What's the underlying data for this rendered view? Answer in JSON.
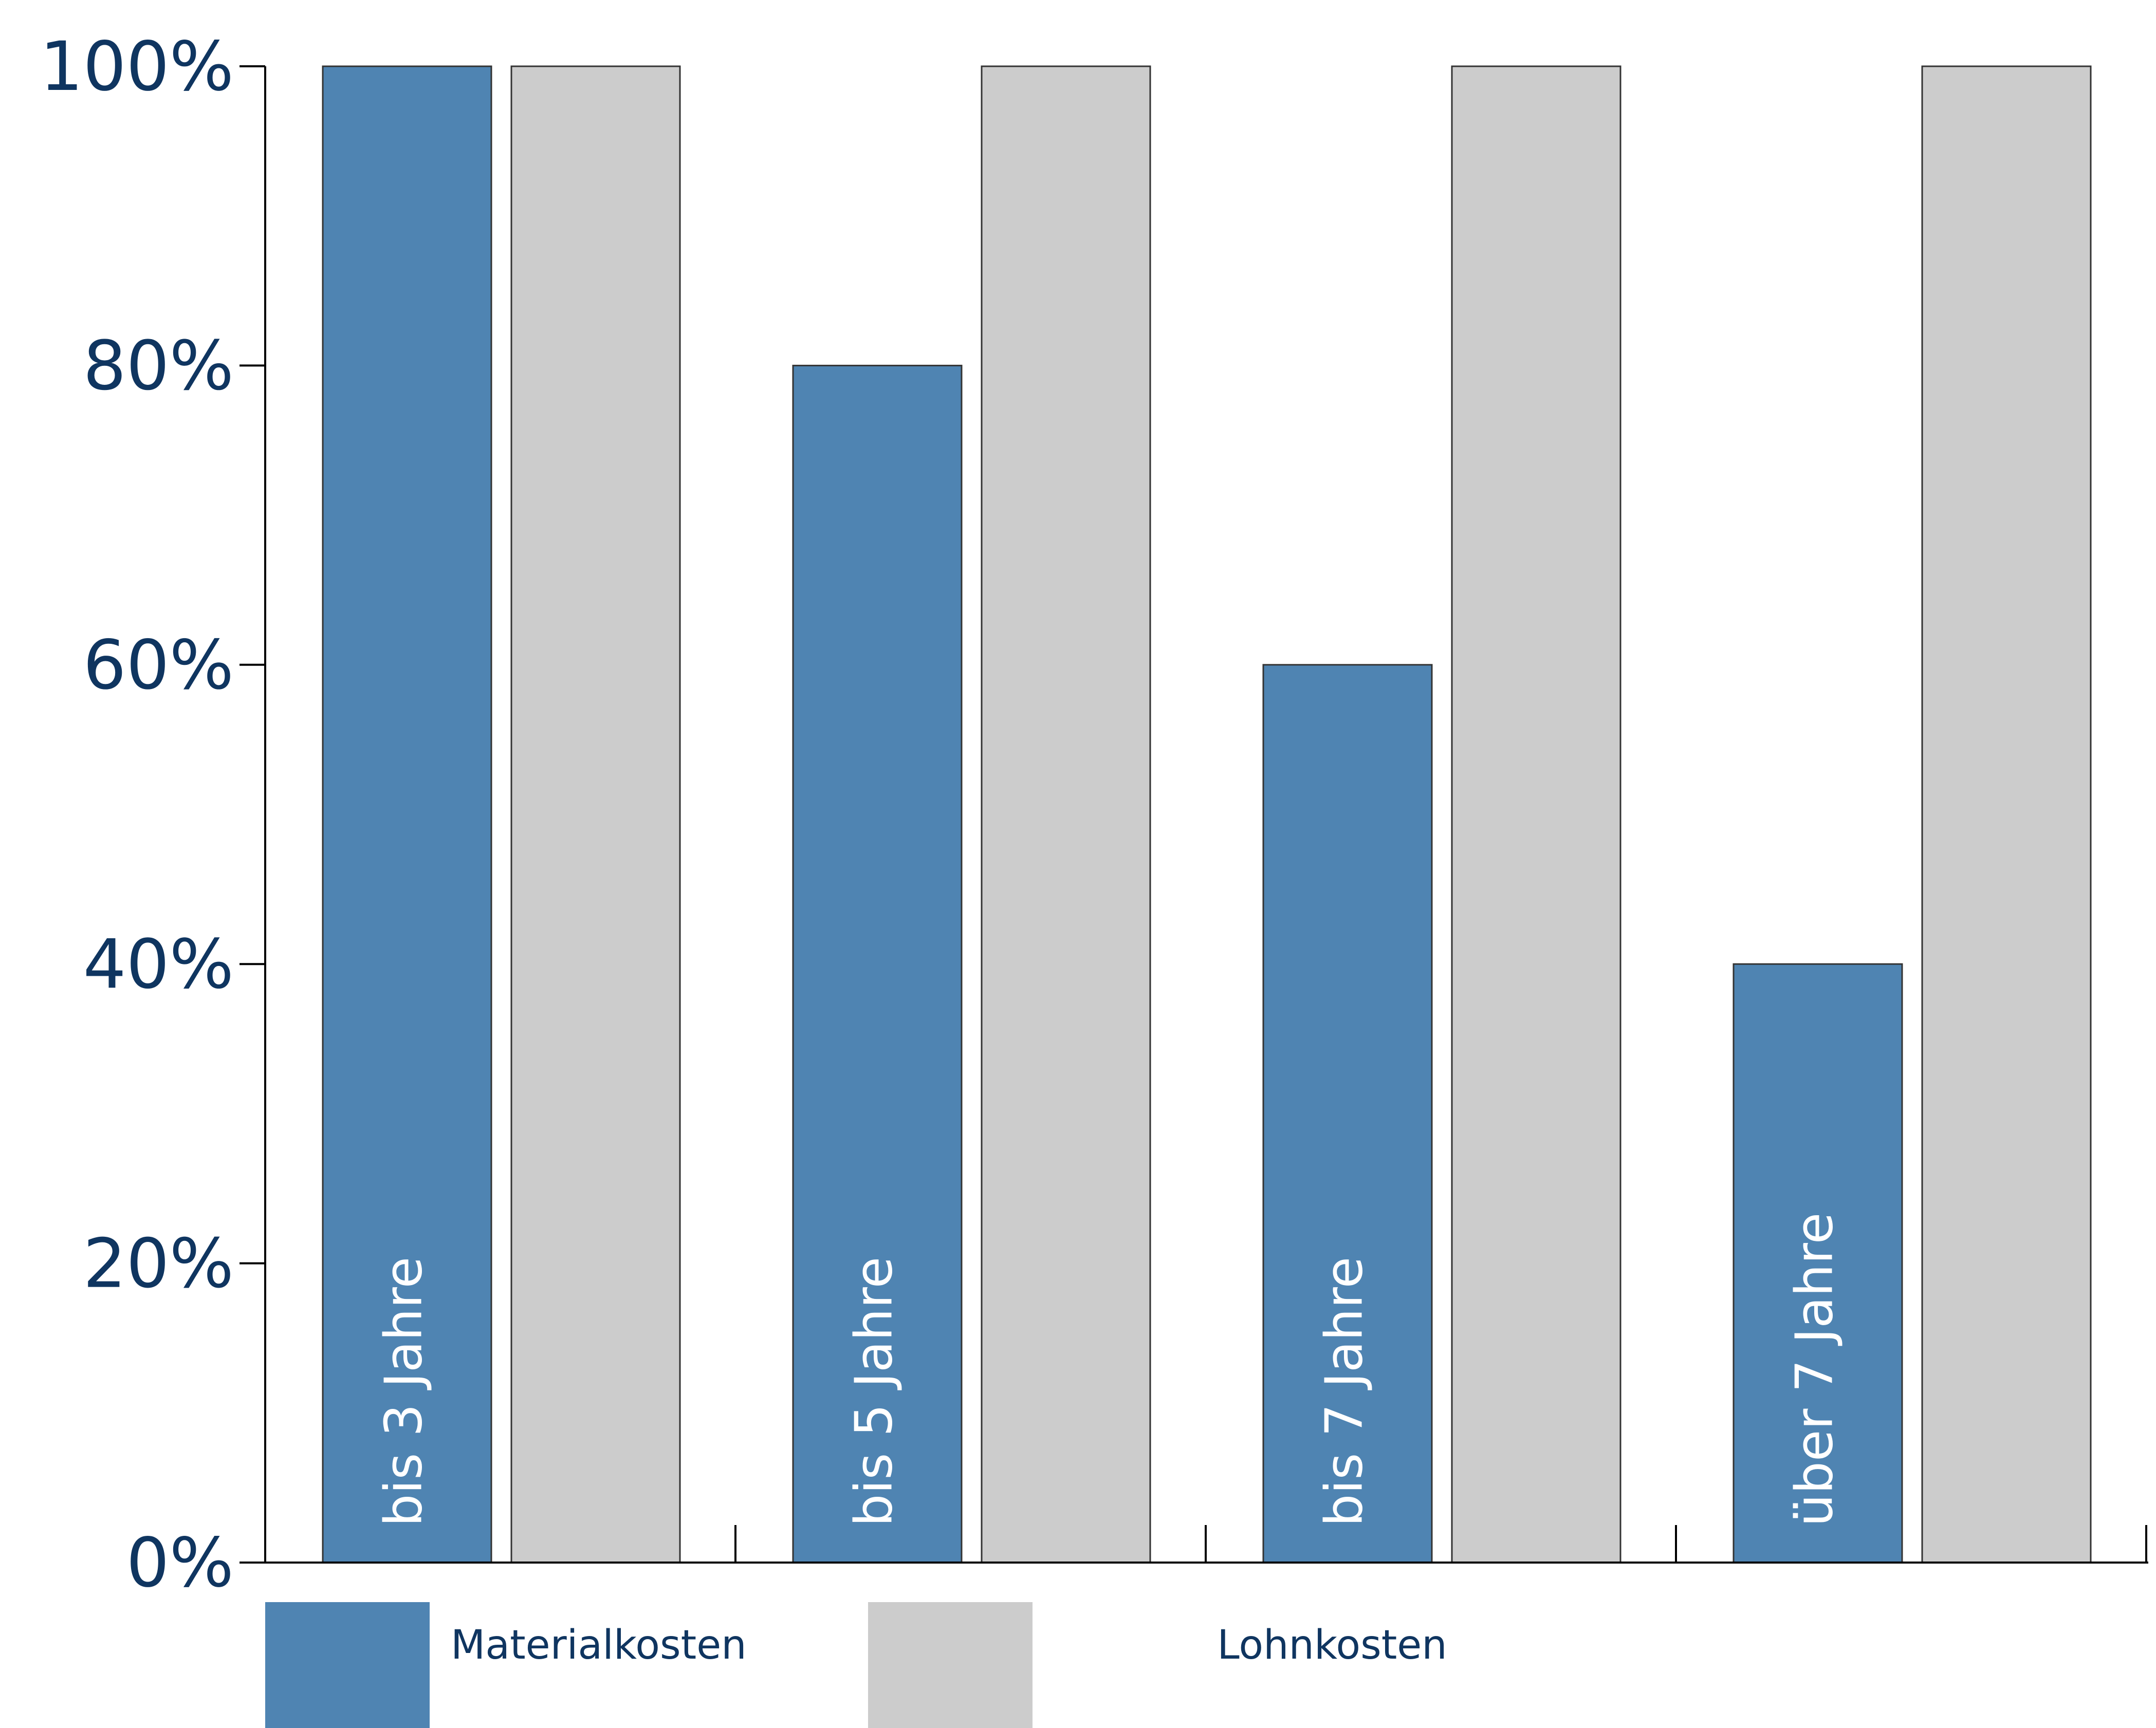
{
  "chart_data": {
    "type": "bar",
    "categories": [
      "bis 3 Jahre",
      "bis 5 Jahre",
      "bis 7 Jahre",
      "über 7 Jahre"
    ],
    "series": [
      {
        "name": "Materialkosten",
        "values": [
          100,
          80,
          60,
          40
        ],
        "color": "#4f84b2"
      },
      {
        "name": "Lohnkosten",
        "values": [
          100,
          100,
          100,
          100
        ],
        "color": "#cccccc"
      }
    ],
    "ylim": [
      0,
      100
    ],
    "y_ticks": [
      0,
      20,
      40,
      60,
      80,
      100
    ],
    "y_tick_labels": [
      "0%",
      "20%",
      "40%",
      "60%",
      "80%",
      "100%"
    ],
    "category_label_placement": "rotated inside first bar",
    "legend_placement": "bottom",
    "grid": false,
    "title": "",
    "xlabel": "",
    "ylabel": ""
  }
}
